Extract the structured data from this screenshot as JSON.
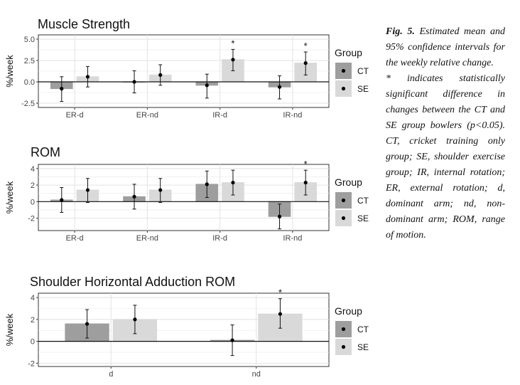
{
  "caption": {
    "fig_label": "Fig. 5.",
    "line1": "Estimated mean and 95% confidence intervals for the weekly relative change.",
    "line2": "* indicates statistically significant difference in changes between the CT and SE group bowlers (p<0.05). CT, cricket training only group; SE, shoulder exercise group; IR, internal rotation; ER, external rotation; d, dominant arm; nd, non-dominant arm; ROM, range of motion."
  },
  "chart_data": [
    {
      "type": "bar",
      "title": "Muscle Strength",
      "ylabel": "%/week",
      "xlabel": "",
      "categories": [
        "ER-d",
        "ER-nd",
        "IR-d",
        "IR-nd"
      ],
      "ylim": [
        -3,
        5.5
      ],
      "yticks": [
        -2.5,
        0.0,
        2.5,
        5.0
      ],
      "ytick_labels": [
        "-2.5",
        "0.0",
        "2.5",
        "5.0"
      ],
      "legend_title": "Group",
      "legend_position": "right",
      "grid": true,
      "series": [
        {
          "name": "CT",
          "color": "#9e9e9e",
          "values": [
            -0.8,
            0.0,
            -0.4,
            -0.6
          ],
          "ci_low": [
            -2.3,
            -1.3,
            -1.9,
            -2.0
          ],
          "ci_high": [
            0.6,
            1.3,
            0.9,
            0.7
          ]
        },
        {
          "name": "SE",
          "color": "#d9d9d9",
          "values": [
            0.6,
            0.8,
            2.6,
            2.2
          ],
          "ci_low": [
            -0.6,
            -0.4,
            1.3,
            0.8
          ],
          "ci_high": [
            1.8,
            2.0,
            3.8,
            3.5
          ]
        }
      ],
      "significance": [
        "",
        "",
        "*",
        "*"
      ]
    },
    {
      "type": "bar",
      "title": "ROM",
      "ylabel": "%/week",
      "xlabel": "",
      "categories": [
        "ER-d",
        "ER-nd",
        "IR-d",
        "IR-nd"
      ],
      "ylim": [
        -3.5,
        4.5
      ],
      "yticks": [
        -2,
        0,
        2,
        4
      ],
      "ytick_labels": [
        "-2",
        "0",
        "2",
        "4"
      ],
      "legend_title": "Group",
      "legend_position": "right",
      "grid": true,
      "series": [
        {
          "name": "CT",
          "color": "#9e9e9e",
          "values": [
            0.2,
            0.6,
            2.1,
            -1.8
          ],
          "ci_low": [
            -1.3,
            -0.9,
            0.5,
            -3.3
          ],
          "ci_high": [
            1.7,
            2.1,
            3.7,
            -0.3
          ]
        },
        {
          "name": "SE",
          "color": "#d9d9d9",
          "values": [
            1.4,
            1.4,
            2.3,
            2.3
          ],
          "ci_low": [
            -0.1,
            -0.1,
            0.8,
            0.8
          ],
          "ci_high": [
            2.8,
            2.8,
            3.8,
            3.8
          ]
        }
      ],
      "significance": [
        "",
        "",
        "",
        "*"
      ]
    },
    {
      "type": "bar",
      "title": "Shoulder Horizontal Adduction ROM",
      "ylabel": "%/week",
      "xlabel": "",
      "categories": [
        "d",
        "nd"
      ],
      "ylim": [
        -2.3,
        4.4
      ],
      "yticks": [
        -2,
        0,
        2,
        4
      ],
      "ytick_labels": [
        "-2",
        "0",
        "2",
        "4"
      ],
      "legend_title": "Group",
      "legend_position": "right",
      "grid": true,
      "series": [
        {
          "name": "CT",
          "color": "#9e9e9e",
          "values": [
            1.6,
            0.1
          ],
          "ci_low": [
            0.3,
            -1.3
          ],
          "ci_high": [
            2.9,
            1.5
          ]
        },
        {
          "name": "SE",
          "color": "#d9d9d9",
          "values": [
            2.0,
            2.5
          ],
          "ci_low": [
            0.7,
            1.2
          ],
          "ci_high": [
            3.3,
            3.9
          ]
        }
      ],
      "significance": [
        "",
        "*"
      ]
    }
  ]
}
